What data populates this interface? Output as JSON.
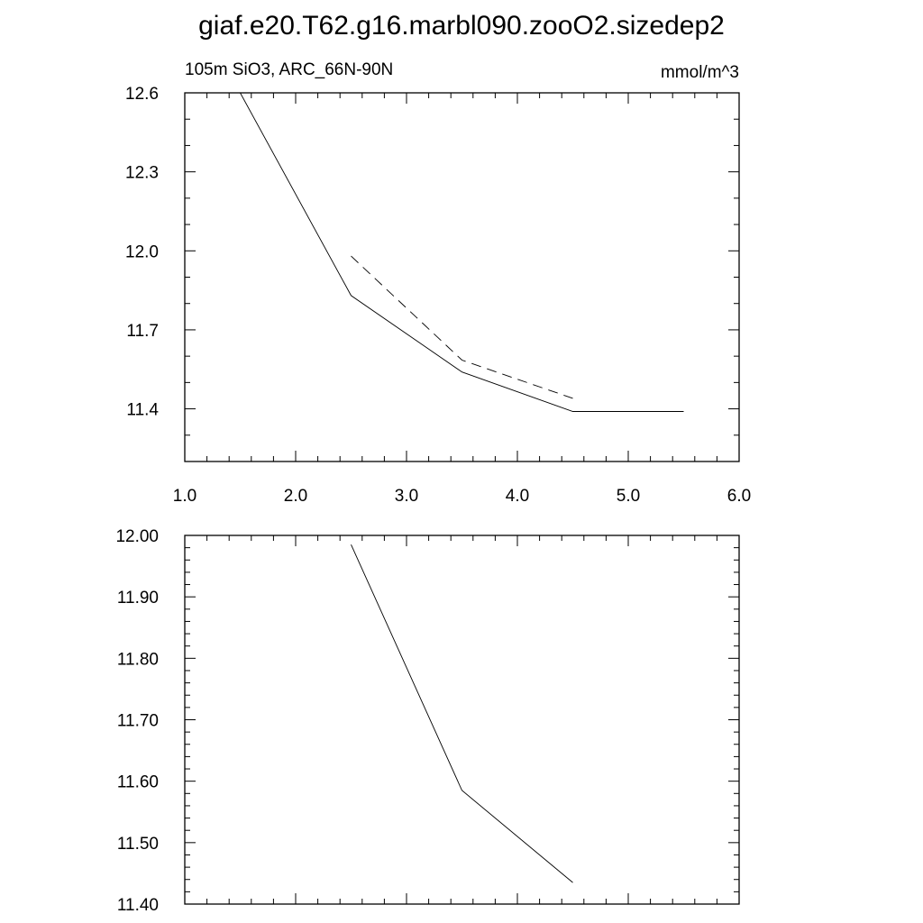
{
  "title": "giaf.e20.T62.g16.marbl090.zooO2.sizedep2",
  "chart_data": [
    {
      "type": "line",
      "left_label": "105m SiO3, ARC_66N-90N",
      "right_label": "mmol/m^3",
      "xlim": [
        1.0,
        6.0
      ],
      "ylim": [
        11.2,
        12.6
      ],
      "x_ticks": [
        "1.0",
        "2.0",
        "3.0",
        "4.0",
        "5.0",
        "6.0"
      ],
      "y_ticks": [
        "11.4",
        "11.7",
        "12.0",
        "12.3",
        "12.6"
      ],
      "series": [
        {
          "style": "solid",
          "x": [
            1.5,
            2.5,
            3.5,
            4.5,
            5.5
          ],
          "y": [
            12.6,
            11.83,
            11.54,
            11.39,
            11.39
          ]
        },
        {
          "style": "dashed",
          "x": [
            2.5,
            3.5,
            4.5
          ],
          "y": [
            11.98,
            11.585,
            11.44
          ]
        }
      ]
    },
    {
      "type": "line",
      "xlim": [
        1.0,
        6.0
      ],
      "ylim": [
        11.4,
        12.0
      ],
      "y_ticks": [
        "11.40",
        "11.50",
        "11.60",
        "11.70",
        "11.80",
        "11.90",
        "12.00"
      ],
      "series": [
        {
          "style": "solid",
          "x": [
            2.5,
            3.5,
            4.5
          ],
          "y": [
            11.985,
            11.585,
            11.435
          ]
        }
      ]
    }
  ]
}
